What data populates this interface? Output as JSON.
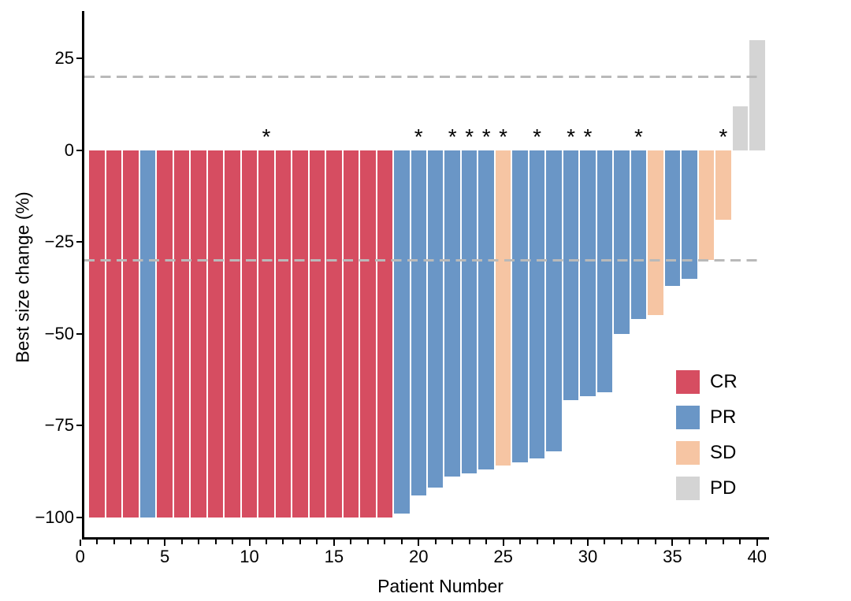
{
  "chart_data": {
    "type": "bar",
    "subtype": "waterfall",
    "title": "",
    "xlabel": "Patient Number",
    "ylabel": "Best size change (%)",
    "x_major_ticks": [
      "0",
      "5",
      "10",
      "15",
      "20",
      "25",
      "30",
      "35",
      "40"
    ],
    "x_major_tick_values": [
      0,
      5,
      10,
      15,
      20,
      25,
      30,
      35,
      40
    ],
    "x_minor_tick_every": 1,
    "y_tick_labels": [
      "25",
      "0",
      "−25",
      "−50",
      "−75",
      "−100"
    ],
    "y_tick_values": [
      25,
      0,
      -25,
      -50,
      -75,
      -100
    ],
    "xlim": [
      0,
      42
    ],
    "ylim": [
      -107,
      36
    ],
    "grid": "off",
    "marker_symbol": "*",
    "marker_meaning_visible": false,
    "reference_lines": [
      {
        "y": 20,
        "style": "dashed",
        "color": "#b9b9b9"
      },
      {
        "y": -30,
        "style": "dashed",
        "color": "#b9b9b9"
      }
    ],
    "legend": {
      "position": "inside-right",
      "entries": [
        {
          "label": "CR",
          "color": "#d64d61"
        },
        {
          "label": "PR",
          "color": "#6a96c6"
        },
        {
          "label": "SD",
          "color": "#f6c5a3"
        },
        {
          "label": "PD",
          "color": "#d4d4d4"
        }
      ]
    },
    "axis_color": "#000000",
    "patients": [
      {
        "patient": 1,
        "value": -100,
        "response": "CR",
        "marked": false
      },
      {
        "patient": 2,
        "value": -100,
        "response": "CR",
        "marked": false
      },
      {
        "patient": 3,
        "value": -100,
        "response": "CR",
        "marked": false
      },
      {
        "patient": 4,
        "value": -100,
        "response": "PR",
        "marked": false
      },
      {
        "patient": 5,
        "value": -100,
        "response": "CR",
        "marked": false
      },
      {
        "patient": 6,
        "value": -100,
        "response": "CR",
        "marked": false
      },
      {
        "patient": 7,
        "value": -100,
        "response": "CR",
        "marked": false
      },
      {
        "patient": 8,
        "value": -100,
        "response": "CR",
        "marked": false
      },
      {
        "patient": 9,
        "value": -100,
        "response": "CR",
        "marked": false
      },
      {
        "patient": 10,
        "value": -100,
        "response": "CR",
        "marked": false
      },
      {
        "patient": 11,
        "value": -100,
        "response": "CR",
        "marked": true
      },
      {
        "patient": 12,
        "value": -100,
        "response": "CR",
        "marked": false
      },
      {
        "patient": 13,
        "value": -100,
        "response": "CR",
        "marked": false
      },
      {
        "patient": 14,
        "value": -100,
        "response": "CR",
        "marked": false
      },
      {
        "patient": 15,
        "value": -100,
        "response": "CR",
        "marked": false
      },
      {
        "patient": 16,
        "value": -100,
        "response": "CR",
        "marked": false
      },
      {
        "patient": 17,
        "value": -100,
        "response": "CR",
        "marked": false
      },
      {
        "patient": 18,
        "value": -100,
        "response": "CR",
        "marked": false
      },
      {
        "patient": 19,
        "value": -99,
        "response": "PR",
        "marked": false
      },
      {
        "patient": 20,
        "value": -94,
        "response": "PR",
        "marked": true
      },
      {
        "patient": 21,
        "value": -92,
        "response": "PR",
        "marked": false
      },
      {
        "patient": 22,
        "value": -89,
        "response": "PR",
        "marked": true
      },
      {
        "patient": 23,
        "value": -88,
        "response": "PR",
        "marked": true
      },
      {
        "patient": 24,
        "value": -87,
        "response": "PR",
        "marked": true
      },
      {
        "patient": 25,
        "value": -86,
        "response": "SD",
        "marked": true
      },
      {
        "patient": 26,
        "value": -85,
        "response": "PR",
        "marked": false
      },
      {
        "patient": 27,
        "value": -84,
        "response": "PR",
        "marked": true
      },
      {
        "patient": 28,
        "value": -82,
        "response": "PR",
        "marked": false
      },
      {
        "patient": 29,
        "value": -68,
        "response": "PR",
        "marked": true
      },
      {
        "patient": 30,
        "value": -67,
        "response": "PR",
        "marked": true
      },
      {
        "patient": 31,
        "value": -66,
        "response": "PR",
        "marked": false
      },
      {
        "patient": 32,
        "value": -50,
        "response": "PR",
        "marked": false
      },
      {
        "patient": 33,
        "value": -46,
        "response": "PR",
        "marked": true
      },
      {
        "patient": 34,
        "value": -45,
        "response": "SD",
        "marked": false
      },
      {
        "patient": 35,
        "value": -37,
        "response": "PR",
        "marked": false
      },
      {
        "patient": 36,
        "value": -35,
        "response": "PR",
        "marked": false
      },
      {
        "patient": 37,
        "value": -30,
        "response": "SD",
        "marked": false
      },
      {
        "patient": 38,
        "value": -19,
        "response": "SD",
        "marked": true
      },
      {
        "patient": 39,
        "value": 12,
        "response": "PD",
        "marked": false
      },
      {
        "patient": 40,
        "value": 30,
        "response": "PD",
        "marked": false
      }
    ]
  }
}
